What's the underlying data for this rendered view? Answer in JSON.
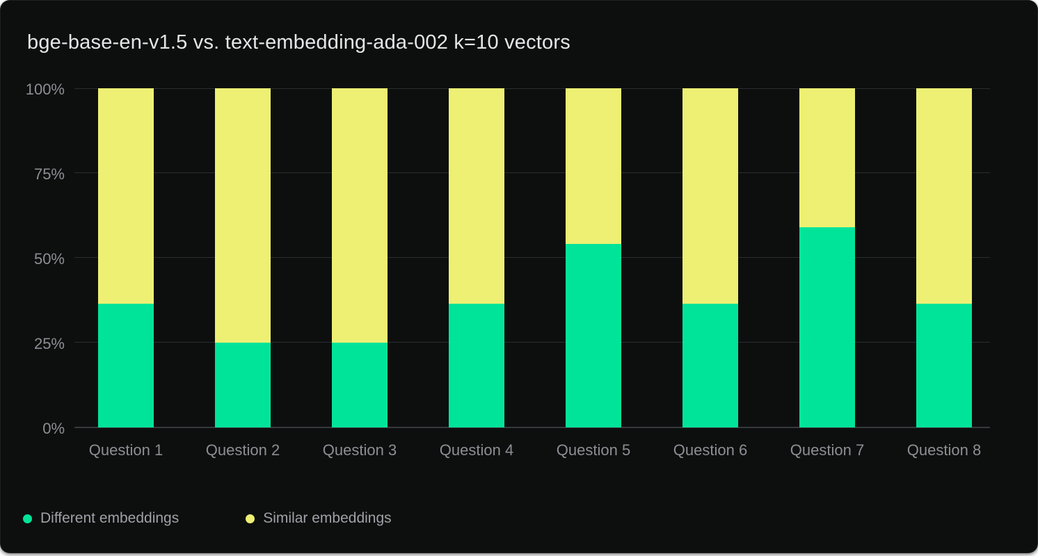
{
  "card": {
    "title": "bge-base-en-v1.5 vs. text-embedding-ada-002 k=10 vectors"
  },
  "chart_data": {
    "type": "bar",
    "stacked": true,
    "title": "bge-base-en-v1.5 vs. text-embedding-ada-002 k=10 vectors",
    "xlabel": "",
    "ylabel": "",
    "unit": "%",
    "ylim": [
      0,
      100
    ],
    "grid": "horizontal",
    "legend_position": "bottom-left",
    "y_ticks": [
      "100%",
      "75%",
      "50%",
      "25%",
      "0%"
    ],
    "categories": [
      "Question 1",
      "Question 2",
      "Question 3",
      "Question 4",
      "Question 5",
      "Question 6",
      "Question 7",
      "Question 8"
    ],
    "series": [
      {
        "name": "Different embeddings",
        "color": "#00e49a",
        "position": "bottom",
        "values": [
          36.5,
          25,
          25,
          36.5,
          54,
          36.5,
          59,
          36.5
        ]
      },
      {
        "name": "Similar embeddings",
        "color": "#edf073",
        "position": "top",
        "values": [
          63.5,
          75,
          75,
          63.5,
          46,
          63.5,
          41,
          63.5
        ]
      }
    ],
    "colors": {
      "card_background": "#0d0f0e",
      "gridline": "#2b2e2f",
      "axis_line": "#363a3c",
      "tick_text": "#8d8e94",
      "title_text": "#e4e5e7",
      "legend_text": "#a0a1a7"
    }
  }
}
